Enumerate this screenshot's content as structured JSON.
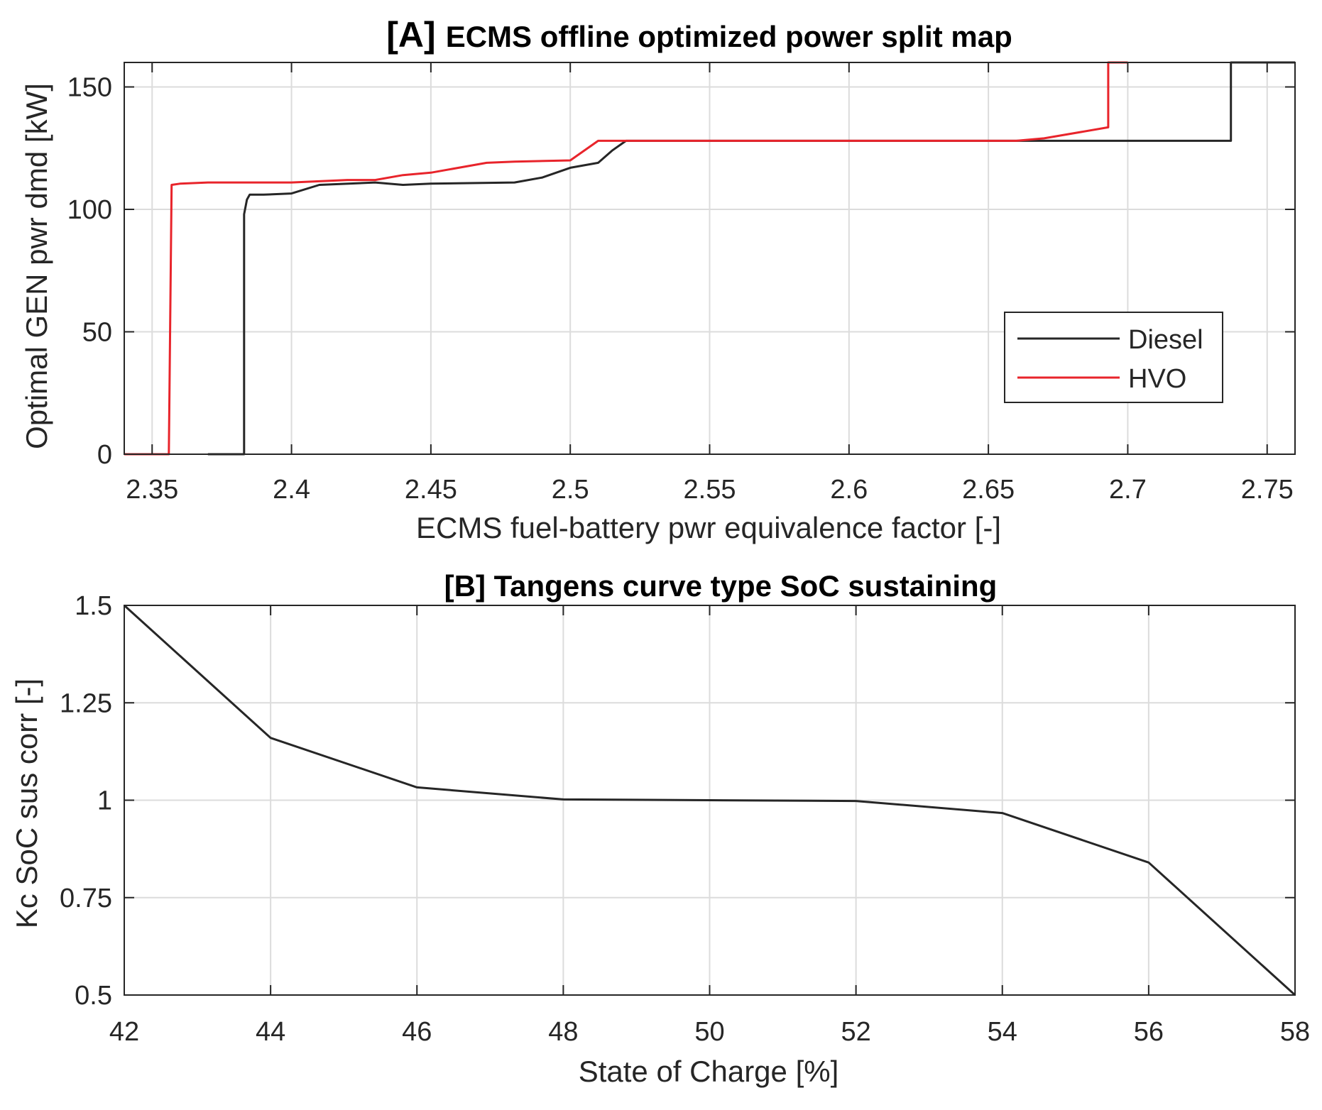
{
  "colors": {
    "diesel": "#262626",
    "hvo": "#e8242b",
    "grid": "#dcdcdc",
    "axis": "#262626",
    "panel_b_line": "#262626"
  },
  "chart_data": [
    {
      "type": "line",
      "title_tag": "[A]",
      "title": "ECMS offline optimized power split map",
      "xlabel": "ECMS fuel-battery pwr equivalence factor [-]",
      "ylabel": "Optimal GEN pwr dmd [kW]",
      "xlim": [
        2.34,
        2.76
      ],
      "ylim": [
        0,
        160
      ],
      "xticks": [
        2.35,
        2.4,
        2.45,
        2.5,
        2.55,
        2.6,
        2.65,
        2.7,
        2.75
      ],
      "xtick_labels": [
        "2.35",
        "2.4",
        "2.45",
        "2.5",
        "2.55",
        "2.6",
        "2.65",
        "2.7",
        "2.75"
      ],
      "yticks": [
        0,
        50,
        100,
        150
      ],
      "ytick_labels": [
        "0",
        "50",
        "100",
        "150"
      ],
      "grid": true,
      "legend_position": "lower-right",
      "series": [
        {
          "name": "Diesel",
          "color": "#262626",
          "x": [
            2.37,
            2.382,
            2.383,
            2.383,
            2.384,
            2.385,
            2.39,
            2.4,
            2.41,
            2.43,
            2.44,
            2.45,
            2.48,
            2.49,
            2.5,
            2.51,
            2.515,
            2.52,
            2.55,
            2.6,
            2.65,
            2.7,
            2.737,
            2.737,
            2.76
          ],
          "y": [
            0,
            0,
            0,
            98,
            104,
            106,
            106,
            106.5,
            110,
            111,
            110,
            110.5,
            111,
            113,
            117,
            119,
            124,
            128,
            128,
            128,
            128,
            128,
            128,
            160,
            160
          ]
        },
        {
          "name": "HVO",
          "color": "#e8242b",
          "x": [
            2.34,
            2.356,
            2.357,
            2.36,
            2.37,
            2.4,
            2.42,
            2.43,
            2.44,
            2.45,
            2.47,
            2.48,
            2.5,
            2.51,
            2.55,
            2.6,
            2.66,
            2.67,
            2.693,
            2.693,
            2.7
          ],
          "y": [
            0,
            0,
            110,
            110.5,
            111,
            111,
            112,
            112,
            114,
            115,
            119,
            119.5,
            120,
            128,
            128,
            128,
            128,
            129,
            133.5,
            160,
            160
          ]
        }
      ]
    },
    {
      "type": "line",
      "title": "[B] Tangens curve type SoC sustaining",
      "xlabel": "State of Charge [%]",
      "ylabel": "Kc SoC sus corr [-]",
      "xlim": [
        42,
        58
      ],
      "ylim": [
        0.5,
        1.5
      ],
      "xticks": [
        42,
        44,
        46,
        48,
        50,
        52,
        54,
        56,
        58
      ],
      "xtick_labels": [
        "42",
        "44",
        "46",
        "48",
        "50",
        "52",
        "54",
        "56",
        "58"
      ],
      "yticks": [
        0.5,
        0.75,
        1,
        1.25,
        1.5
      ],
      "ytick_labels": [
        "0.5",
        "0.75",
        "1",
        "1.25",
        "1.5"
      ],
      "grid": true,
      "series": [
        {
          "color": "#262626",
          "x": [
            42,
            44,
            46,
            48,
            50,
            52,
            54,
            56,
            58
          ],
          "y": [
            1.5,
            1.16,
            1.033,
            1.002,
            1.0,
            0.998,
            0.967,
            0.84,
            0.5
          ]
        }
      ]
    }
  ]
}
